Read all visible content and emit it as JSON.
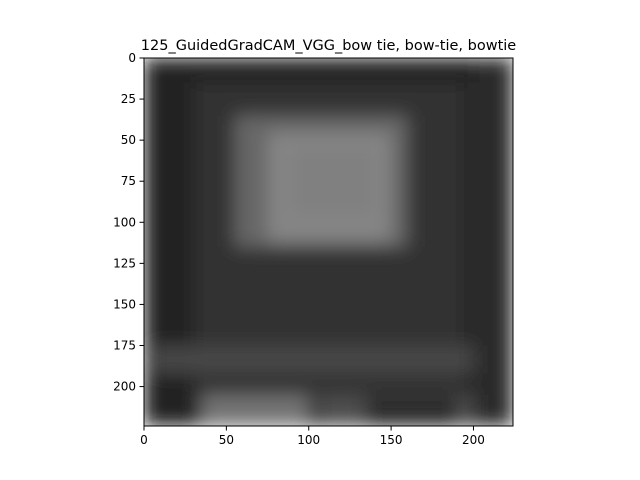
{
  "chart_data": {
    "type": "heatmap",
    "title": "125_GuidedGradCAM_VGG_bow tie, bow-tie, bowtie",
    "xlabel": "",
    "ylabel": "",
    "xlim": [
      0,
      224
    ],
    "ylim": [
      224,
      0
    ],
    "x_ticks": [
      0,
      50,
      100,
      150,
      200
    ],
    "y_ticks": [
      0,
      25,
      50,
      75,
      100,
      125,
      150,
      175,
      200
    ],
    "colormap": "grayscale",
    "grid": false,
    "regions": [
      {
        "x0": 0,
        "x1": 224,
        "y0": 0,
        "y1": 224,
        "level": 0.13
      },
      {
        "x0": 30,
        "x1": 195,
        "y0": 15,
        "y1": 215,
        "level": 0.2
      },
      {
        "x0": 55,
        "x1": 160,
        "y0": 35,
        "y1": 115,
        "level": 0.4
      },
      {
        "x0": 75,
        "x1": 150,
        "y0": 45,
        "y1": 112,
        "level": 0.52
      },
      {
        "x0": 90,
        "x1": 140,
        "y0": 55,
        "y1": 95,
        "level": 0.5
      },
      {
        "x0": 5,
        "x1": 224,
        "y0": 175,
        "y1": 192,
        "level": 0.28
      },
      {
        "x0": 35,
        "x1": 100,
        "y0": 205,
        "y1": 224,
        "level": 0.45
      },
      {
        "x0": 105,
        "x1": 135,
        "y0": 205,
        "y1": 224,
        "level": 0.3
      },
      {
        "x0": 190,
        "x1": 224,
        "y0": 205,
        "y1": 224,
        "level": 0.3
      },
      {
        "x0": 200,
        "x1": 224,
        "y0": 0,
        "y1": 224,
        "level": 0.16
      }
    ]
  }
}
